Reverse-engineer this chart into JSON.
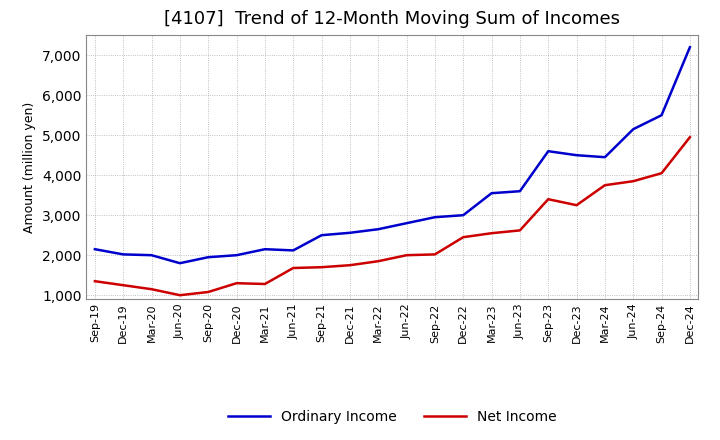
{
  "title": "[4107]  Trend of 12-Month Moving Sum of Incomes",
  "ylabel": "Amount (million yen)",
  "ylim": [
    900,
    7500
  ],
  "yticks": [
    1000,
    2000,
    3000,
    4000,
    5000,
    6000,
    7000
  ],
  "x_labels": [
    "Sep-19",
    "Dec-19",
    "Mar-20",
    "Jun-20",
    "Sep-20",
    "Dec-20",
    "Mar-21",
    "Jun-21",
    "Sep-21",
    "Dec-21",
    "Mar-22",
    "Jun-22",
    "Sep-22",
    "Dec-22",
    "Mar-23",
    "Jun-23",
    "Sep-23",
    "Dec-23",
    "Mar-24",
    "Jun-24",
    "Sep-24",
    "Dec-24"
  ],
  "ordinary_income": [
    2150,
    2020,
    2000,
    1800,
    1950,
    2000,
    2150,
    2120,
    2500,
    2560,
    2650,
    2800,
    2950,
    3000,
    3550,
    3600,
    4600,
    4500,
    4450,
    5150,
    5500,
    7200
  ],
  "net_income": [
    1350,
    1250,
    1150,
    1000,
    1080,
    1300,
    1280,
    1680,
    1700,
    1750,
    1850,
    2000,
    2020,
    2450,
    2550,
    2620,
    3400,
    3250,
    3750,
    3850,
    4050,
    4950
  ],
  "ordinary_color": "#0000cc",
  "net_color": "#cc0000",
  "background_color": "#FFFFFF",
  "grid_color": "#999999",
  "title_fontsize": 13,
  "axis_fontsize": 9,
  "tick_fontsize": 8,
  "legend_fontsize": 10
}
